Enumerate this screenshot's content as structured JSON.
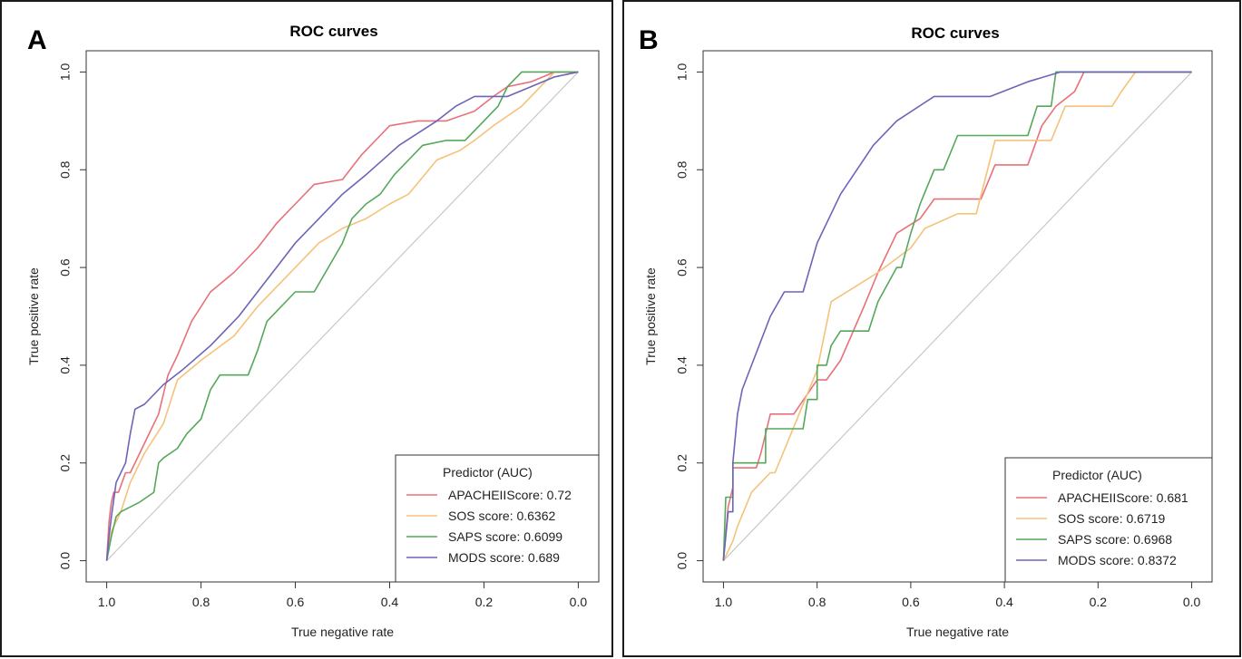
{
  "chart_data": [
    {
      "panel_label": "A",
      "type": "line",
      "title": "ROC curves",
      "xlabel": "True negative rate",
      "ylabel": "True positive rate",
      "xlim": [
        1.0,
        0.0
      ],
      "ylim": [
        0.0,
        1.0
      ],
      "x_reversed": true,
      "xticks": [
        1.0,
        0.8,
        0.6,
        0.4,
        0.2,
        0.0
      ],
      "xtick_labels": [
        "1.0",
        "0.8",
        "0.6",
        "0.4",
        "0.2",
        "0.0"
      ],
      "yticks": [
        0.0,
        0.2,
        0.4,
        0.6,
        0.8,
        1.0
      ],
      "ytick_labels": [
        "0.0",
        "0.2",
        "0.4",
        "0.6",
        "0.8",
        "1.0"
      ],
      "diagonal_color": "#c8c8c8",
      "legend": {
        "title": "Predictor (AUC)",
        "placement": "bottom-right"
      },
      "series": [
        {
          "name": "APACHEIIScore: 0.72",
          "color": "#e8707a",
          "x": [
            1.0,
            0.995,
            0.99,
            0.985,
            0.975,
            0.96,
            0.95,
            0.93,
            0.91,
            0.89,
            0.87,
            0.85,
            0.82,
            0.78,
            0.73,
            0.68,
            0.64,
            0.6,
            0.56,
            0.5,
            0.46,
            0.42,
            0.4,
            0.34,
            0.28,
            0.22,
            0.18,
            0.15,
            0.1,
            0.05,
            0.0
          ],
          "y": [
            0.0,
            0.08,
            0.12,
            0.14,
            0.14,
            0.18,
            0.18,
            0.22,
            0.26,
            0.3,
            0.38,
            0.42,
            0.49,
            0.55,
            0.59,
            0.64,
            0.69,
            0.73,
            0.77,
            0.78,
            0.83,
            0.87,
            0.89,
            0.9,
            0.9,
            0.92,
            0.95,
            0.97,
            0.98,
            1.0,
            1.0
          ]
        },
        {
          "name": "SOS score: 0.6362",
          "color": "#f5c27a",
          "x": [
            1.0,
            0.99,
            0.97,
            0.95,
            0.92,
            0.88,
            0.85,
            0.8,
            0.73,
            0.68,
            0.6,
            0.55,
            0.5,
            0.45,
            0.4,
            0.36,
            0.3,
            0.25,
            0.22,
            0.18,
            0.15,
            0.12,
            0.08,
            0.05,
            0.0
          ],
          "y": [
            0.0,
            0.06,
            0.1,
            0.16,
            0.22,
            0.28,
            0.37,
            0.41,
            0.46,
            0.52,
            0.6,
            0.65,
            0.68,
            0.7,
            0.73,
            0.75,
            0.82,
            0.84,
            0.86,
            0.89,
            0.91,
            0.93,
            0.97,
            1.0,
            1.0
          ]
        },
        {
          "name": "SAPS score: 0.6099",
          "color": "#55a85a",
          "x": [
            1.0,
            0.99,
            0.98,
            0.97,
            0.93,
            0.9,
            0.89,
            0.88,
            0.85,
            0.83,
            0.8,
            0.78,
            0.76,
            0.74,
            0.7,
            0.68,
            0.67,
            0.66,
            0.6,
            0.56,
            0.53,
            0.5,
            0.48,
            0.45,
            0.42,
            0.39,
            0.36,
            0.33,
            0.28,
            0.24,
            0.2,
            0.17,
            0.15,
            0.12,
            0.08,
            0.04,
            0.0
          ],
          "y": [
            0.0,
            0.05,
            0.09,
            0.1,
            0.12,
            0.14,
            0.2,
            0.21,
            0.23,
            0.26,
            0.29,
            0.35,
            0.38,
            0.38,
            0.38,
            0.43,
            0.46,
            0.49,
            0.55,
            0.55,
            0.6,
            0.65,
            0.7,
            0.73,
            0.75,
            0.79,
            0.82,
            0.85,
            0.86,
            0.86,
            0.9,
            0.93,
            0.97,
            1.0,
            1.0,
            1.0,
            1.0
          ]
        },
        {
          "name": "MODS score: 0.689",
          "color": "#6b65b8",
          "x": [
            1.0,
            0.995,
            0.99,
            0.98,
            0.96,
            0.95,
            0.94,
            0.92,
            0.88,
            0.84,
            0.78,
            0.72,
            0.68,
            0.64,
            0.6,
            0.55,
            0.5,
            0.45,
            0.38,
            0.3,
            0.26,
            0.22,
            0.18,
            0.15,
            0.1,
            0.05,
            0.0
          ],
          "y": [
            0.0,
            0.05,
            0.09,
            0.16,
            0.2,
            0.26,
            0.31,
            0.32,
            0.36,
            0.39,
            0.44,
            0.5,
            0.55,
            0.6,
            0.65,
            0.7,
            0.75,
            0.79,
            0.85,
            0.9,
            0.93,
            0.95,
            0.95,
            0.95,
            0.97,
            0.99,
            1.0
          ]
        }
      ]
    },
    {
      "panel_label": "B",
      "type": "line",
      "title": "ROC curves",
      "xlabel": "True negative rate",
      "ylabel": "True positive rate",
      "xlim": [
        1.0,
        0.0
      ],
      "ylim": [
        0.0,
        1.0
      ],
      "x_reversed": true,
      "xticks": [
        1.0,
        0.8,
        0.6,
        0.4,
        0.2,
        0.0
      ],
      "xtick_labels": [
        "1.0",
        "0.8",
        "0.6",
        "0.4",
        "0.2",
        "0.0"
      ],
      "yticks": [
        0.0,
        0.2,
        0.4,
        0.6,
        0.8,
        1.0
      ],
      "ytick_labels": [
        "0.0",
        "0.2",
        "0.4",
        "0.6",
        "0.8",
        "1.0"
      ],
      "diagonal_color": "#c8c8c8",
      "legend": {
        "title": "Predictor (AUC)",
        "placement": "bottom-right"
      },
      "series": [
        {
          "name": "APACHEIIScore: 0.681",
          "color": "#e8707a",
          "x": [
            1.0,
            0.99,
            0.98,
            0.98,
            0.97,
            0.93,
            0.92,
            0.9,
            0.85,
            0.8,
            0.78,
            0.75,
            0.7,
            0.67,
            0.63,
            0.58,
            0.55,
            0.45,
            0.42,
            0.35,
            0.32,
            0.29,
            0.25,
            0.23,
            0.2,
            0.1,
            0.0
          ],
          "y": [
            0.0,
            0.11,
            0.15,
            0.19,
            0.19,
            0.19,
            0.22,
            0.3,
            0.3,
            0.37,
            0.37,
            0.41,
            0.52,
            0.59,
            0.67,
            0.7,
            0.74,
            0.74,
            0.81,
            0.81,
            0.89,
            0.93,
            0.96,
            1.0,
            1.0,
            1.0,
            1.0
          ]
        },
        {
          "name": "SOS score: 0.6719",
          "color": "#f5c27a",
          "x": [
            1.0,
            0.98,
            0.97,
            0.94,
            0.9,
            0.89,
            0.86,
            0.8,
            0.77,
            0.72,
            0.67,
            0.6,
            0.57,
            0.5,
            0.46,
            0.42,
            0.38,
            0.3,
            0.27,
            0.21,
            0.17,
            0.15,
            0.12,
            0.0
          ],
          "y": [
            0.0,
            0.04,
            0.07,
            0.14,
            0.18,
            0.18,
            0.25,
            0.39,
            0.53,
            0.56,
            0.59,
            0.64,
            0.68,
            0.71,
            0.71,
            0.86,
            0.86,
            0.86,
            0.93,
            0.93,
            0.93,
            0.96,
            1.0,
            1.0
          ]
        },
        {
          "name": "SAPS score: 0.6968",
          "color": "#55a85a",
          "x": [
            1.0,
            0.995,
            0.99,
            0.98,
            0.98,
            0.97,
            0.93,
            0.91,
            0.91,
            0.85,
            0.83,
            0.82,
            0.8,
            0.8,
            0.78,
            0.77,
            0.75,
            0.7,
            0.69,
            0.67,
            0.63,
            0.62,
            0.6,
            0.58,
            0.55,
            0.53,
            0.5,
            0.45,
            0.4,
            0.35,
            0.33,
            0.3,
            0.29,
            0.2,
            0.0
          ],
          "y": [
            0.0,
            0.13,
            0.13,
            0.13,
            0.2,
            0.2,
            0.2,
            0.2,
            0.27,
            0.27,
            0.27,
            0.33,
            0.33,
            0.4,
            0.4,
            0.44,
            0.47,
            0.47,
            0.47,
            0.53,
            0.6,
            0.6,
            0.67,
            0.73,
            0.8,
            0.8,
            0.87,
            0.87,
            0.87,
            0.87,
            0.93,
            0.93,
            1.0,
            1.0,
            1.0
          ]
        },
        {
          "name": "MODS score: 0.8372",
          "color": "#6b65b8",
          "x": [
            1.0,
            0.995,
            0.99,
            0.98,
            0.98,
            0.97,
            0.96,
            0.94,
            0.9,
            0.87,
            0.83,
            0.8,
            0.75,
            0.68,
            0.63,
            0.55,
            0.43,
            0.35,
            0.28,
            0.1,
            0.0
          ],
          "y": [
            0.0,
            0.05,
            0.1,
            0.1,
            0.2,
            0.3,
            0.35,
            0.4,
            0.5,
            0.55,
            0.55,
            0.65,
            0.75,
            0.85,
            0.9,
            0.95,
            0.95,
            0.98,
            1.0,
            1.0,
            1.0
          ]
        }
      ]
    }
  ]
}
